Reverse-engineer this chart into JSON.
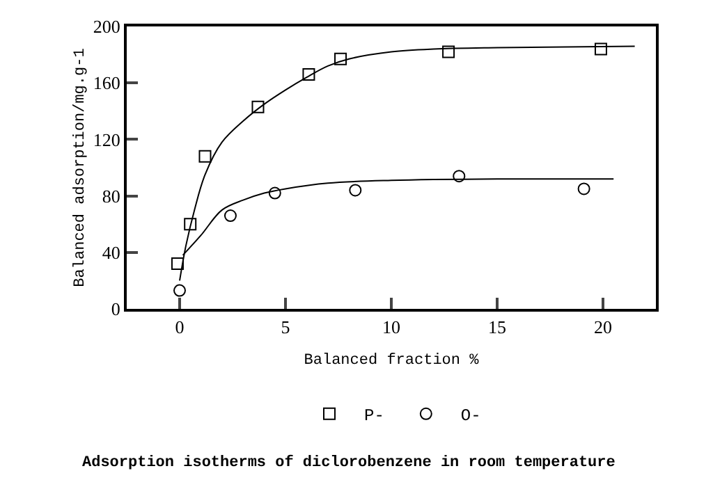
{
  "chart_data": {
    "type": "scatter",
    "title": "Adsorption isotherms of diclorobenzene in room temperature",
    "xlabel": "Balanced fraction %",
    "ylabel": "Balanced adsorption/mg.g-1",
    "series": [
      {
        "name": "P-",
        "color": "#000000",
        "marker": "square",
        "x": [
          -0.1,
          0.5,
          1.2,
          3.7,
          6.1,
          7.6,
          12.7,
          19.9
        ],
        "values": [
          32,
          60,
          108,
          143,
          166,
          177,
          182,
          184
        ]
      },
      {
        "name": "O-",
        "color": "#000000",
        "marker": "circle",
        "x": [
          0,
          2.4,
          4.5,
          8.3,
          13.2,
          19.1
        ],
        "values": [
          13,
          66,
          82,
          84,
          94,
          85
        ]
      },
      {
        "type": "line",
        "color": "#000000",
        "x": [
          0,
          0.3,
          0.7,
          1.2,
          2,
          3,
          4,
          5,
          6,
          7,
          8,
          10,
          12,
          15,
          21.5
        ],
        "values": [
          20,
          45,
          70,
          95,
          118,
          133,
          145,
          155,
          164,
          172,
          177,
          182,
          184,
          185,
          186
        ]
      },
      {
        "type": "line",
        "color": "#000000",
        "x": [
          0.15,
          1,
          2,
          3,
          4,
          5,
          7,
          10,
          15,
          20.5
        ],
        "values": [
          38,
          52,
          70,
          77,
          82,
          85,
          89,
          91,
          92,
          92
        ]
      }
    ],
    "xlim": [
      -2.5,
      22.5
    ],
    "xticks": [
      0,
      5,
      10,
      15,
      20
    ],
    "ylim": [
      0,
      200
    ],
    "yticks": [
      0,
      40,
      80,
      120,
      160,
      200
    ],
    "legend": "bottom"
  }
}
